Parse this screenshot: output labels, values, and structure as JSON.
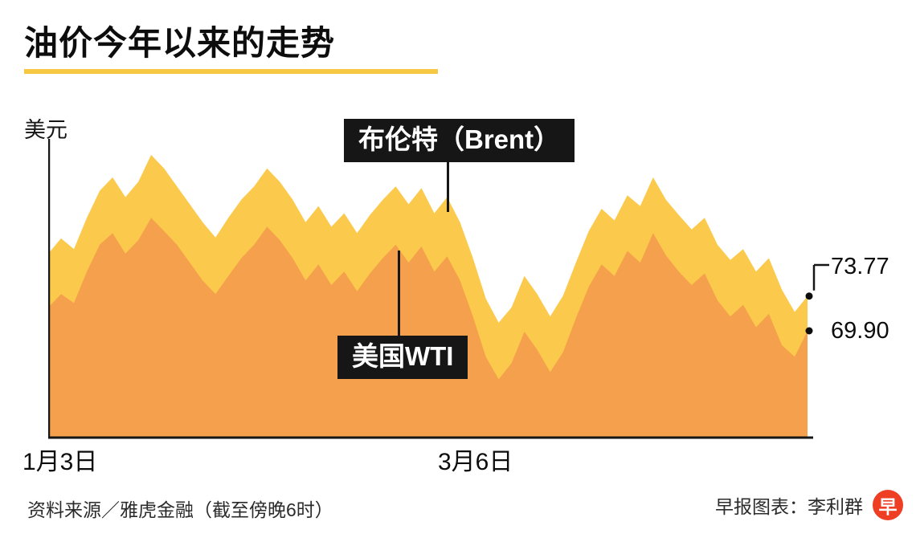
{
  "title": "油价今年以来的走势",
  "y_axis_label": "美元",
  "x_ticks": [
    "1月3日",
    "3月6日"
  ],
  "series_labels": {
    "brent": "布伦特（Brent）",
    "wti": "美国WTI"
  },
  "end_values": {
    "brent": "73.77",
    "wti": "69.90"
  },
  "footer": {
    "source": "资料来源／雅虎金融（截至傍晚6时）",
    "credit": "早报图表：李利群",
    "logo_char": "早"
  },
  "colors": {
    "brent_area": "#FBC94B",
    "wti_area": "#F5A04C",
    "accent_underline": "#F7C843",
    "label_box": "#161616",
    "axis": "#161616",
    "logo_red": "#EE3E23"
  },
  "chart_data": {
    "type": "area",
    "title": "油价今年以来的走势",
    "ylabel": "美元",
    "xlabel": "",
    "x_axis_labels": {
      "start": "1月3日",
      "mid": "3月6日"
    },
    "ylim": [
      58,
      92
    ],
    "grid": false,
    "legend_position": "inline-callouts",
    "series": [
      {
        "key": "brent",
        "name": "布伦特（Brent）",
        "color": "#FBC94B",
        "end_value": 73.77,
        "values": [
          78.5,
          80.2,
          79.0,
          82.5,
          85.5,
          87.0,
          84.8,
          86.5,
          89.5,
          88.0,
          86.0,
          84.0,
          82.0,
          80.3,
          82.5,
          84.5,
          86.0,
          88.0,
          86.5,
          84.5,
          82.0,
          83.8,
          81.5,
          83.0,
          80.8,
          82.8,
          84.5,
          86.0,
          84.0,
          85.8,
          83.0,
          84.8,
          82.0,
          78.0,
          73.5,
          70.8,
          72.5,
          76.0,
          74.0,
          71.5,
          73.8,
          77.5,
          81.0,
          83.5,
          82.2,
          85.0,
          83.8,
          87.0,
          84.5,
          82.8,
          81.2,
          82.5,
          79.5,
          77.8,
          79.0,
          76.5,
          78.0,
          74.5,
          72.0,
          73.77
        ]
      },
      {
        "key": "wti",
        "name": "美国WTI",
        "color": "#F5A04C",
        "end_value": 69.9,
        "values": [
          72.5,
          74.0,
          73.0,
          76.5,
          79.5,
          80.8,
          78.5,
          80.0,
          82.5,
          81.0,
          79.5,
          77.5,
          75.5,
          74.0,
          76.0,
          78.0,
          79.5,
          81.5,
          80.0,
          78.0,
          75.5,
          77.3,
          75.0,
          76.5,
          74.3,
          76.3,
          78.0,
          79.5,
          77.5,
          79.3,
          76.5,
          78.2,
          75.5,
          71.5,
          67.0,
          64.5,
          66.3,
          69.8,
          67.8,
          65.3,
          67.5,
          71.3,
          74.8,
          77.3,
          76.0,
          78.8,
          77.5,
          80.8,
          78.3,
          76.5,
          75.0,
          76.3,
          73.3,
          71.5,
          72.8,
          70.3,
          71.8,
          68.3,
          67.0,
          69.9
        ]
      }
    ]
  }
}
